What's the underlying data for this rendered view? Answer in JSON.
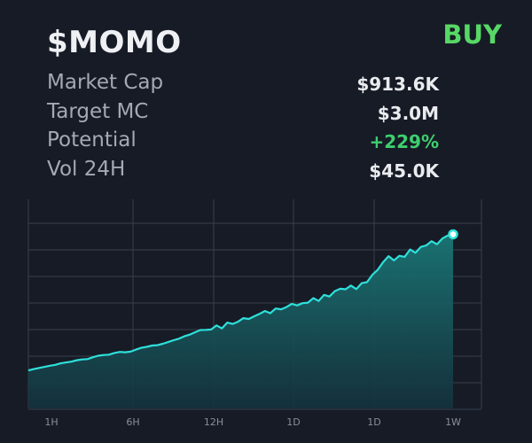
{
  "header": {
    "ticker": "$MOMO",
    "action": "BUY",
    "action_color": "#57d865"
  },
  "stats": [
    {
      "label": "Market Cap",
      "value": "$913.6K",
      "color": "#e9ebef"
    },
    {
      "label": "Target MC",
      "value": "$3.0M",
      "color": "#e9ebef"
    },
    {
      "label": "Potential",
      "value": "+229%",
      "color": "#3ecf6e"
    },
    {
      "label": "Vol 24H",
      "value": "$45.0K",
      "color": "#e9ebef"
    }
  ],
  "chart_data": {
    "type": "area",
    "x_tick_labels": [
      "1H",
      "6H",
      "12H",
      "1D",
      "1D",
      "1W"
    ],
    "line_color": "#2fe0da",
    "fill_color": "#1a6f70",
    "ylim": [
      0,
      100
    ],
    "x": [
      0,
      1,
      2,
      3,
      4,
      5,
      6,
      7,
      8,
      9,
      10,
      11,
      12,
      13,
      14,
      15,
      16,
      17,
      18,
      19,
      20,
      21,
      22,
      23,
      24,
      25,
      26,
      27,
      28,
      29,
      30,
      31,
      32,
      33,
      34,
      35,
      36,
      37,
      38,
      39,
      40,
      41,
      42,
      43,
      44,
      45,
      46,
      47,
      48,
      49,
      50,
      51,
      52,
      53,
      54,
      55,
      56,
      57,
      58,
      59,
      60,
      61,
      62,
      63,
      64,
      65,
      66,
      67,
      68,
      69,
      70,
      71,
      72,
      73,
      74,
      75,
      76,
      77,
      78,
      79
    ],
    "values": [
      10.5,
      11.2,
      11.8,
      12.4,
      13.0,
      13.5,
      14.3,
      14.8,
      15.2,
      16.0,
      16.4,
      16.6,
      17.6,
      18.4,
      18.8,
      19.0,
      19.9,
      20.5,
      20.3,
      20.6,
      21.7,
      22.7,
      23.2,
      23.9,
      24.1,
      24.9,
      25.8,
      26.8,
      27.6,
      28.9,
      29.8,
      31.1,
      32.3,
      32.4,
      32.6,
      34.8,
      33.2,
      36.3,
      35.6,
      36.8,
      38.7,
      38.3,
      39.7,
      41.0,
      42.6,
      41.4,
      43.9,
      43.5,
      44.7,
      46.4,
      45.6,
      46.8,
      47.1,
      49.5,
      48.0,
      51.3,
      50.4,
      53.3,
      54.6,
      54.3,
      56.3,
      54.4,
      57.6,
      58.2,
      62.2,
      64.9,
      69.0,
      72.2,
      69.9,
      72.4,
      71.8,
      75.8,
      74.0,
      77.2,
      78.0,
      80.3,
      78.6,
      81.7,
      83.3,
      84.0
    ]
  }
}
